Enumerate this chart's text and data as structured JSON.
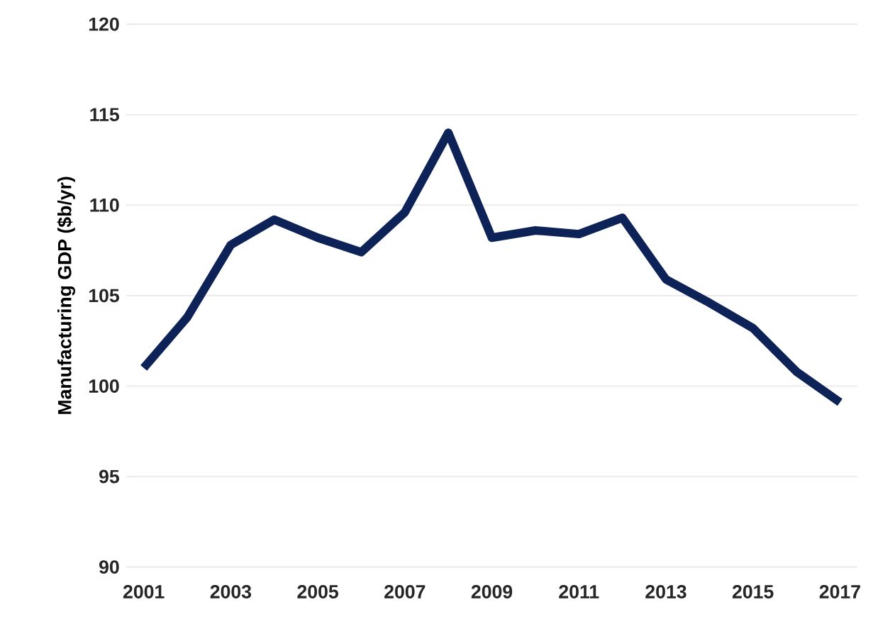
{
  "chart_data": {
    "type": "line",
    "ylabel": "Manufacturing GDP ($b/yr)",
    "x": [
      2001,
      2002,
      2003,
      2004,
      2005,
      2006,
      2007,
      2008,
      2009,
      2010,
      2011,
      2012,
      2013,
      2014,
      2015,
      2016,
      2017
    ],
    "series": [
      {
        "color": "#0d2358",
        "values": [
          101.0,
          103.8,
          107.8,
          109.2,
          108.2,
          107.4,
          109.6,
          114.0,
          108.2,
          108.6,
          108.4,
          109.3,
          105.9,
          104.6,
          103.2,
          100.8,
          99.1
        ]
      }
    ],
    "xlim": [
      2000.6,
      2017.4
    ],
    "xticks": [
      2001,
      2003,
      2005,
      2007,
      2009,
      2011,
      2013,
      2015,
      2017
    ],
    "ylim": [
      90,
      120
    ],
    "yticks": [
      90,
      95,
      100,
      105,
      110,
      115,
      120
    ],
    "grid": "y",
    "marker": "none",
    "line_style": "solid"
  }
}
